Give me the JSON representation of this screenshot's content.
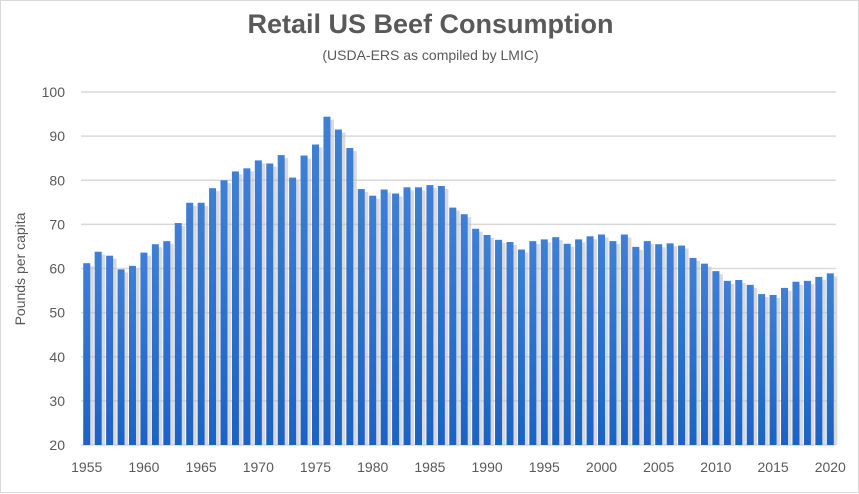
{
  "chart_data": {
    "type": "bar",
    "title": "Retail US Beef Consumption",
    "subtitle": "(USDA-ERS as compiled by LMIC)",
    "xlabel": "",
    "ylabel": "Pounds per capita",
    "ylim": [
      20,
      100
    ],
    "yticks": [
      20,
      30,
      40,
      50,
      60,
      70,
      80,
      90,
      100
    ],
    "xticks": [
      1955,
      1960,
      1965,
      1970,
      1975,
      1980,
      1985,
      1990,
      1995,
      2000,
      2005,
      2010,
      2015,
      2020
    ],
    "grid": true,
    "bar_color": "#2e6fcc",
    "categories": [
      1955,
      1956,
      1957,
      1958,
      1959,
      1960,
      1961,
      1962,
      1963,
      1964,
      1965,
      1966,
      1967,
      1968,
      1969,
      1970,
      1971,
      1972,
      1973,
      1974,
      1975,
      1976,
      1977,
      1978,
      1979,
      1980,
      1981,
      1982,
      1983,
      1984,
      1985,
      1986,
      1987,
      1988,
      1989,
      1990,
      1991,
      1992,
      1993,
      1994,
      1995,
      1996,
      1997,
      1998,
      1999,
      2000,
      2001,
      2002,
      2003,
      2004,
      2005,
      2006,
      2007,
      2008,
      2009,
      2010,
      2011,
      2012,
      2013,
      2014,
      2015,
      2016,
      2017,
      2018,
      2019,
      2020
    ],
    "values": [
      61.2,
      63.8,
      62.9,
      59.8,
      60.6,
      63.6,
      65.5,
      66.2,
      70.3,
      74.9,
      74.9,
      78.2,
      80.0,
      82.0,
      82.7,
      84.5,
      83.8,
      85.7,
      80.6,
      85.6,
      88.1,
      94.4,
      91.5,
      87.3,
      78.0,
      76.5,
      77.9,
      77.0,
      78.4,
      78.4,
      78.9,
      78.7,
      73.8,
      72.3,
      69.0,
      67.6,
      66.5,
      66.0,
      64.3,
      66.2,
      66.6,
      67.1,
      65.6,
      66.6,
      67.3,
      67.7,
      66.2,
      67.7,
      64.9,
      66.2,
      65.5,
      65.7,
      65.2,
      62.4,
      61.1,
      59.4,
      57.2,
      57.4,
      56.3,
      54.2,
      54.0,
      55.6,
      57.0,
      57.2,
      58.1,
      58.9
    ]
  }
}
